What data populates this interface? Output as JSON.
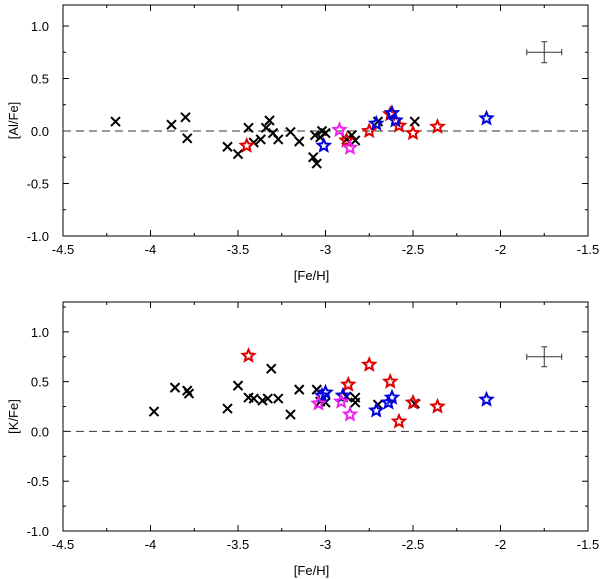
{
  "chart_data": [
    {
      "type": "scatter",
      "ylabel": "[Al/Fe]",
      "xlabel": "[Fe/H]",
      "xlim": [
        -4.5,
        -1.5
      ],
      "ylim": [
        -1.0,
        1.2
      ],
      "xticks": [
        -4.5,
        -4,
        -3.5,
        -3,
        -2.5,
        -2,
        -1.5
      ],
      "xtick_labels": [
        "-4.5",
        "-4",
        "-3.5",
        "-3",
        "-2.5",
        "-2",
        "-1.5"
      ],
      "yticks": [
        -1.0,
        -0.5,
        0.0,
        0.5,
        1.0
      ],
      "ytick_labels": [
        "-1.0",
        "-0.5",
        "0.0",
        "0.5",
        "1.0"
      ],
      "reference_line": 0.0,
      "error_bar": {
        "x": -1.75,
        "y": 0.75,
        "dx": 0.1,
        "dy": 0.1
      },
      "series": [
        {
          "name": "black-cross",
          "marker": "x",
          "color": "#000000",
          "points": [
            [
              -4.2,
              0.09
            ],
            [
              -3.88,
              0.06
            ],
            [
              -3.8,
              0.13
            ],
            [
              -3.79,
              -0.07
            ],
            [
              -3.56,
              -0.15
            ],
            [
              -3.5,
              -0.22
            ],
            [
              -3.44,
              0.03
            ],
            [
              -3.41,
              -0.11
            ],
            [
              -3.37,
              -0.08
            ],
            [
              -3.34,
              0.03
            ],
            [
              -3.32,
              0.1
            ],
            [
              -3.3,
              -0.02
            ],
            [
              -3.27,
              -0.08
            ],
            [
              -3.2,
              -0.01
            ],
            [
              -3.15,
              -0.1
            ],
            [
              -3.07,
              -0.25
            ],
            [
              -3.06,
              -0.04
            ],
            [
              -3.05,
              -0.31
            ],
            [
              -3.03,
              -0.06
            ],
            [
              -3.02,
              0.0
            ],
            [
              -3.0,
              -0.02
            ],
            [
              -2.88,
              -0.08
            ],
            [
              -2.85,
              -0.04
            ],
            [
              -2.83,
              -0.09
            ],
            [
              -2.7,
              0.09
            ],
            [
              -2.49,
              0.09
            ]
          ]
        },
        {
          "name": "red-star",
          "marker": "star",
          "color": "#e00000",
          "points": [
            [
              -3.45,
              -0.14
            ],
            [
              -2.88,
              -0.09
            ],
            [
              -2.75,
              0.0
            ],
            [
              -2.63,
              0.16
            ],
            [
              -2.58,
              0.05
            ],
            [
              -2.5,
              -0.02
            ],
            [
              -2.36,
              0.04
            ]
          ]
        },
        {
          "name": "blue-star",
          "marker": "star",
          "color": "#0000dd",
          "points": [
            [
              -3.01,
              -0.14
            ],
            [
              -2.71,
              0.07
            ],
            [
              -2.62,
              0.17
            ],
            [
              -2.6,
              0.1
            ],
            [
              -2.08,
              0.12
            ]
          ]
        },
        {
          "name": "magenta-star",
          "marker": "star",
          "color": "#ee22ee",
          "points": [
            [
              -2.92,
              0.01
            ],
            [
              -2.86,
              -0.16
            ]
          ]
        }
      ]
    },
    {
      "type": "scatter",
      "ylabel": "[K/Fe]",
      "xlabel": "[Fe/H]",
      "xlim": [
        -4.5,
        -1.5
      ],
      "ylim": [
        -1.0,
        1.3
      ],
      "xticks": [
        -4.5,
        -4,
        -3.5,
        -3,
        -2.5,
        -2,
        -1.5
      ],
      "xtick_labels": [
        "-4.5",
        "-4",
        "-3.5",
        "-3",
        "-2.5",
        "-2",
        "-1.5"
      ],
      "yticks": [
        -1.0,
        -0.5,
        0.0,
        0.5,
        1.0
      ],
      "ytick_labels": [
        "-1.0",
        "-0.5",
        "0.0",
        "0.5",
        "1.0"
      ],
      "reference_line": 0.0,
      "error_bar": {
        "x": -1.75,
        "y": 0.75,
        "dx": 0.1,
        "dy": 0.1
      },
      "series": [
        {
          "name": "black-cross",
          "marker": "x",
          "color": "#000000",
          "points": [
            [
              -3.98,
              0.2
            ],
            [
              -3.86,
              0.44
            ],
            [
              -3.79,
              0.41
            ],
            [
              -3.78,
              0.38
            ],
            [
              -3.56,
              0.23
            ],
            [
              -3.5,
              0.46
            ],
            [
              -3.44,
              0.34
            ],
            [
              -3.41,
              0.33
            ],
            [
              -3.36,
              0.31
            ],
            [
              -3.33,
              0.33
            ],
            [
              -3.31,
              0.63
            ],
            [
              -3.27,
              0.33
            ],
            [
              -3.2,
              0.17
            ],
            [
              -3.15,
              0.42
            ],
            [
              -3.05,
              0.42
            ],
            [
              -3.03,
              0.3
            ],
            [
              -3.0,
              0.29
            ],
            [
              -2.88,
              0.35
            ],
            [
              -2.83,
              0.29
            ],
            [
              -2.83,
              0.34
            ],
            [
              -2.7,
              0.27
            ],
            [
              -2.49,
              0.28
            ]
          ]
        },
        {
          "name": "red-star",
          "marker": "star",
          "color": "#e00000",
          "points": [
            [
              -3.44,
              0.76
            ],
            [
              -2.87,
              0.47
            ],
            [
              -2.75,
              0.67
            ],
            [
              -2.63,
              0.5
            ],
            [
              -2.58,
              0.1
            ],
            [
              -2.5,
              0.29
            ],
            [
              -2.36,
              0.25
            ]
          ]
        },
        {
          "name": "blue-star",
          "marker": "star",
          "color": "#0000dd",
          "points": [
            [
              -3.02,
              0.36
            ],
            [
              -3.0,
              0.39
            ],
            [
              -2.9,
              0.36
            ],
            [
              -2.71,
              0.21
            ],
            [
              -2.64,
              0.29
            ],
            [
              -2.62,
              0.34
            ],
            [
              -2.08,
              0.32
            ]
          ]
        },
        {
          "name": "magenta-star",
          "marker": "star",
          "color": "#ee22ee",
          "points": [
            [
              -3.04,
              0.28
            ],
            [
              -2.91,
              0.3
            ],
            [
              -2.86,
              0.17
            ]
          ]
        }
      ]
    }
  ]
}
